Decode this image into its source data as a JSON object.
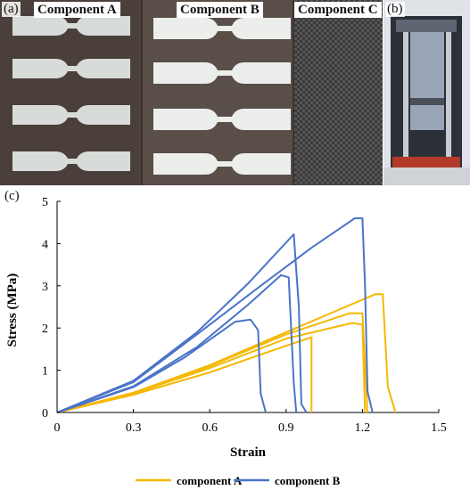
{
  "photos": {
    "label_a": "(a)",
    "label_b": "(b)",
    "component_a": "Component A",
    "component_b": "Component B",
    "component_c": "Component C"
  },
  "panel_c_label": "(c)",
  "colors": {
    "component_a": "#f5b800",
    "component_b": "#4a74c8",
    "axis": "#000000"
  },
  "chart_data": {
    "type": "line",
    "title": "",
    "xlabel": "Strain",
    "ylabel": "Stress (MPa)",
    "xlim": [
      0,
      1.5
    ],
    "ylim": [
      0,
      5
    ],
    "xticks": [
      0,
      0.3,
      0.6,
      0.9,
      1.2,
      1.5
    ],
    "xtick_labels": [
      "0",
      "0.3",
      "0.6",
      "0.9",
      "1.2",
      "1.5"
    ],
    "yticks": [
      0,
      1,
      2,
      3,
      4,
      5
    ],
    "ytick_labels": [
      "0",
      "1",
      "2",
      "3",
      "4",
      "5"
    ],
    "grid": false,
    "legend_position": "bottom",
    "legend": [
      "component A",
      "component B"
    ],
    "series": [
      {
        "name": "component A",
        "group": "A",
        "points": [
          [
            0,
            0
          ],
          [
            0.3,
            0.42
          ],
          [
            0.6,
            0.95
          ],
          [
            0.9,
            1.58
          ],
          [
            1.0,
            1.78
          ],
          [
            1.0,
            0
          ]
        ]
      },
      {
        "name": "component A",
        "group": "A",
        "points": [
          [
            0,
            0
          ],
          [
            0.3,
            0.45
          ],
          [
            0.6,
            1.05
          ],
          [
            0.9,
            1.75
          ],
          [
            1.16,
            2.12
          ],
          [
            1.2,
            2.08
          ],
          [
            1.21,
            0
          ]
        ]
      },
      {
        "name": "component A",
        "group": "A",
        "points": [
          [
            0,
            0
          ],
          [
            0.3,
            0.46
          ],
          [
            0.6,
            1.1
          ],
          [
            0.9,
            1.85
          ],
          [
            1.15,
            2.35
          ],
          [
            1.2,
            2.35
          ],
          [
            1.22,
            0
          ]
        ]
      },
      {
        "name": "component A",
        "group": "A",
        "points": [
          [
            0,
            0
          ],
          [
            0.3,
            0.47
          ],
          [
            0.6,
            1.12
          ],
          [
            0.9,
            1.9
          ],
          [
            1.18,
            2.62
          ],
          [
            1.25,
            2.8
          ],
          [
            1.28,
            2.8
          ],
          [
            1.3,
            0.6
          ],
          [
            1.33,
            0
          ]
        ]
      },
      {
        "name": "component B",
        "group": "B",
        "points": [
          [
            0,
            0
          ],
          [
            0.3,
            0.6
          ],
          [
            0.5,
            1.3
          ],
          [
            0.7,
            2.15
          ],
          [
            0.76,
            2.2
          ],
          [
            0.79,
            1.95
          ],
          [
            0.8,
            0.45
          ],
          [
            0.82,
            0
          ]
        ]
      },
      {
        "name": "component B",
        "group": "B",
        "points": [
          [
            0,
            0
          ],
          [
            0.3,
            0.62
          ],
          [
            0.55,
            1.55
          ],
          [
            0.75,
            2.55
          ],
          [
            0.88,
            3.25
          ],
          [
            0.91,
            3.2
          ],
          [
            0.93,
            0.7
          ],
          [
            0.94,
            0
          ]
        ]
      },
      {
        "name": "component B",
        "group": "B",
        "points": [
          [
            0,
            0
          ],
          [
            0.3,
            0.75
          ],
          [
            0.55,
            1.9
          ],
          [
            0.75,
            3.05
          ],
          [
            0.93,
            4.22
          ],
          [
            0.95,
            2.5
          ],
          [
            0.96,
            0.2
          ],
          [
            0.98,
            0
          ]
        ]
      },
      {
        "name": "component B",
        "group": "B",
        "points": [
          [
            0,
            0
          ],
          [
            0.3,
            0.72
          ],
          [
            0.55,
            1.85
          ],
          [
            0.8,
            3.0
          ],
          [
            1.0,
            3.9
          ],
          [
            1.17,
            4.6
          ],
          [
            1.2,
            4.6
          ],
          [
            1.21,
            3.0
          ],
          [
            1.22,
            0.5
          ],
          [
            1.24,
            0
          ]
        ]
      }
    ]
  }
}
